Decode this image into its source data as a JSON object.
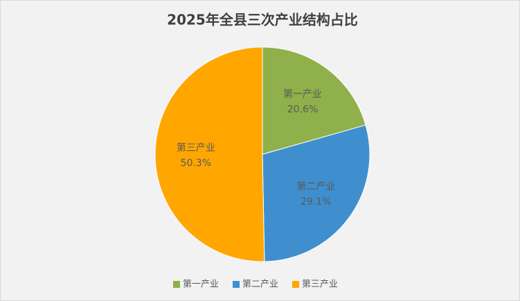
{
  "chart_data": {
    "type": "pie",
    "title": "2025年全县三次产业结构占比",
    "categories": [
      "第一产业",
      "第二产业",
      "第三产业"
    ],
    "values": [
      20.6,
      29.1,
      50.3
    ],
    "value_labels": [
      "20.6%",
      "29.1%",
      "50.3%"
    ],
    "colors": [
      "#8fb04a",
      "#3f8fcf",
      "#ffa600"
    ],
    "legend": "bottom"
  }
}
